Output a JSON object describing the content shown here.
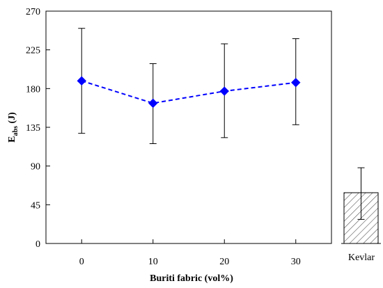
{
  "chart_data": [
    {
      "type": "line",
      "xlabel": "Buriti fabric (vol%)",
      "ylabel_main": "E",
      "ylabel_sub": "abs",
      "ylabel_unit": " (J)",
      "ylim": [
        0,
        270
      ],
      "yticks": [
        0,
        45,
        90,
        135,
        180,
        225,
        270
      ],
      "xlim": [
        -5,
        35
      ],
      "xticks": [
        0,
        10,
        20,
        30
      ],
      "grid": false,
      "series": [
        {
          "x": [
            0,
            10,
            20,
            30
          ],
          "y": [
            189,
            163,
            177,
            187
          ],
          "err_low": [
            128,
            116,
            123,
            138
          ],
          "err_high": [
            250,
            209,
            232,
            238
          ],
          "color": "#0000ff",
          "marker": "diamond",
          "line_style": "dashed"
        }
      ]
    },
    {
      "type": "bar",
      "categories": [
        "Kevlar"
      ],
      "values": [
        59
      ],
      "err_low": [
        28
      ],
      "err_high": [
        88
      ],
      "fill": "hatched"
    }
  ]
}
